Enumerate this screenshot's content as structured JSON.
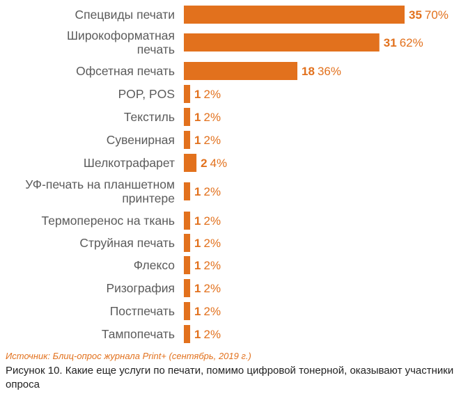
{
  "chart_data": {
    "type": "bar",
    "orientation": "horizontal",
    "categories": [
      "Спецвиды печати",
      "Широкоформатная печать",
      "Офсетная печать",
      "POP, POS",
      "Текстиль",
      "Сувенирная",
      "Шелкотрафарет",
      "УФ-печать на планшетном принтере",
      "Термоперенос на ткань",
      "Струйная печать",
      "Флексо",
      "Ризография",
      "Постпечать",
      "Тампопечать"
    ],
    "category_lines": [
      [
        "Спецвиды печати"
      ],
      [
        "Широкоформатная",
        "печать"
      ],
      [
        "Офсетная печать"
      ],
      [
        "POP, POS"
      ],
      [
        "Текстиль"
      ],
      [
        "Сувенирная"
      ],
      [
        "Шелкотрафарет"
      ],
      [
        "УФ-печать на планшетном",
        "принтере"
      ],
      [
        "Термоперенос на ткань"
      ],
      [
        "Струйная печать"
      ],
      [
        "Флексо"
      ],
      [
        "Ризография"
      ],
      [
        "Постпечать"
      ],
      [
        "Тампопечать"
      ]
    ],
    "values": [
      35,
      31,
      18,
      1,
      1,
      1,
      2,
      1,
      1,
      1,
      1,
      1,
      1,
      1
    ],
    "percent_labels": [
      "70%",
      "62%",
      "36%",
      "2%",
      "2%",
      "2%",
      "4%",
      "2%",
      "2%",
      "2%",
      "2%",
      "2%",
      "2%",
      "2%"
    ],
    "xlim": [
      0,
      35
    ],
    "bar_color": "#e2711d",
    "grid": false
  },
  "source": "Источник: Блиц-опрос журнала Print+ (сентябрь, 2019 г.)",
  "caption": "Рисунок 10. Какие еще услуги по печати, помимо цифровой тонерной, оказывают участники опроса"
}
